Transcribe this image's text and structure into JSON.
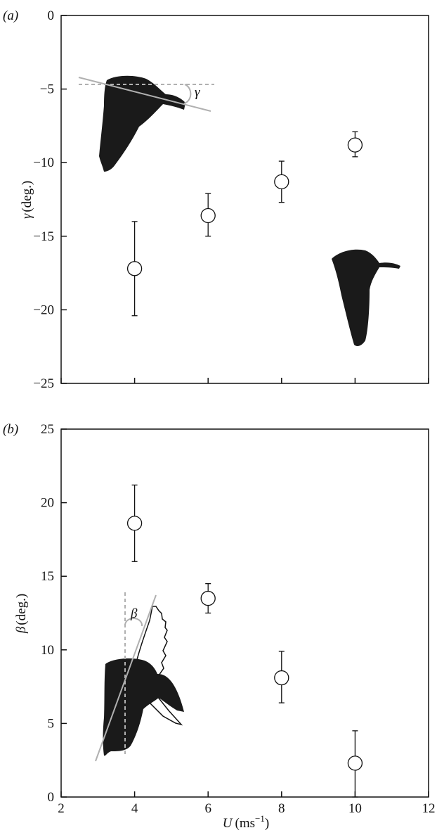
{
  "chart_data": [
    {
      "type": "scatter",
      "panel_label": "(a)",
      "ylabel_symbol": "γ",
      "ylabel_unit": "(deg.)",
      "xlim": [
        2,
        12
      ],
      "ylim": [
        -25,
        0
      ],
      "yticks": [
        0,
        -5,
        -10,
        -15,
        -20,
        -25
      ],
      "ytick_labels": [
        "0",
        "−5",
        "−10",
        "−15",
        "−20",
        "−25"
      ],
      "angle_symbol": "γ",
      "points": [
        {
          "x": 4,
          "y": -17.2,
          "err_low": -20.4,
          "err_high": -14.0
        },
        {
          "x": 6,
          "y": -13.6,
          "err_low": -15.0,
          "err_high": -12.1
        },
        {
          "x": 8,
          "y": -11.3,
          "err_low": -12.7,
          "err_high": -9.9
        },
        {
          "x": 10,
          "y": -8.8,
          "err_low": -9.6,
          "err_high": -7.9
        }
      ],
      "grid": false,
      "marker": "open-circle-with-error-bars",
      "illustrations": [
        "bird-silhouette-with-body-angle",
        "bird-silhouette"
      ]
    },
    {
      "type": "scatter",
      "panel_label": "(b)",
      "ylabel_symbol": "β",
      "ylabel_unit": "(deg.)",
      "xlabel_symbol": "U",
      "xlabel_unit_pre": "(ms",
      "xlabel_unit_sup": "−1",
      "xlabel_unit_post": ")",
      "xlim": [
        2,
        12
      ],
      "ylim": [
        0,
        25
      ],
      "xticks": [
        2,
        4,
        6,
        8,
        10,
        12
      ],
      "xtick_labels": [
        "2",
        "4",
        "6",
        "8",
        "10",
        "12"
      ],
      "yticks": [
        0,
        5,
        10,
        15,
        20,
        25
      ],
      "ytick_labels": [
        "0",
        "5",
        "10",
        "15",
        "20",
        "25"
      ],
      "angle_symbol": "β",
      "points": [
        {
          "x": 4,
          "y": 18.6,
          "err_low": 16.0,
          "err_high": 21.2
        },
        {
          "x": 6,
          "y": 13.5,
          "err_low": 12.5,
          "err_high": 14.5
        },
        {
          "x": 8,
          "y": 8.1,
          "err_low": 6.4,
          "err_high": 9.9
        },
        {
          "x": 10,
          "y": 2.3,
          "err_low": 0.0,
          "err_high": 4.5
        }
      ],
      "grid": false,
      "marker": "open-circle-with-error-bars",
      "illustrations": [
        "bird-silhouette-with-wing-stroke-angle"
      ]
    }
  ],
  "colors": {
    "axis": "#111111",
    "marker_edge": "#111111",
    "marker_fill": "#ffffff",
    "silhouette": "#1a1a1a",
    "reference_line": "#b0b0b0"
  }
}
